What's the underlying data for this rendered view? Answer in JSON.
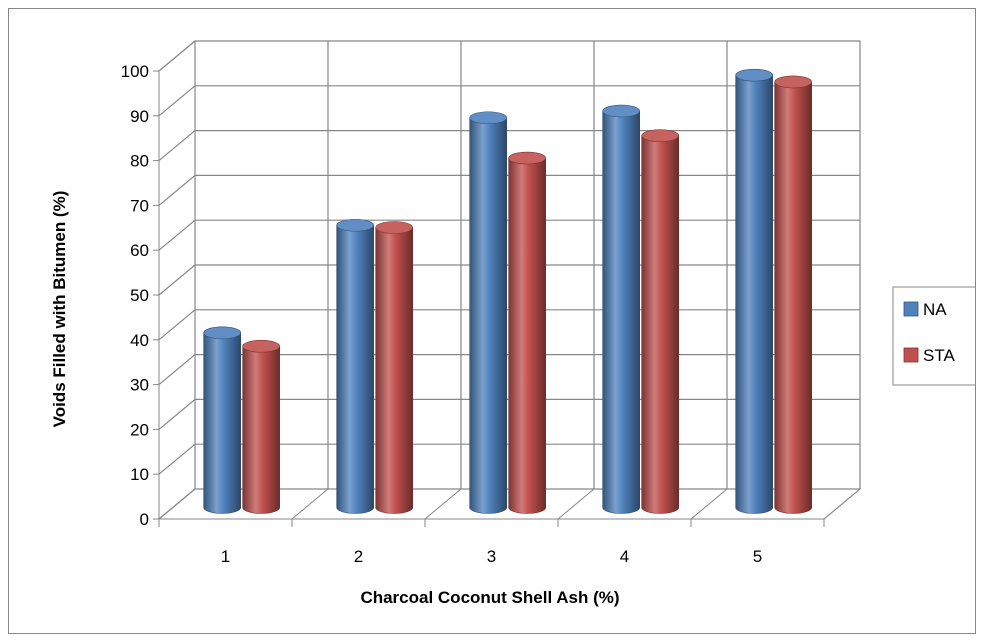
{
  "chart_data": {
    "type": "bar",
    "style": "3d-cylinder",
    "xlabel": "Charcoal Coconut Shell Ash (%)",
    "ylabel": "Voids Filled with Bitumen (%)",
    "categories": [
      "1",
      "2",
      "3",
      "4",
      "5"
    ],
    "y_ticks": [
      "0",
      "10",
      "20",
      "30",
      "40",
      "50",
      "60",
      "70",
      "80",
      "90",
      "100"
    ],
    "ylim": [
      0,
      100
    ],
    "grid": true,
    "legend_position": "right",
    "series": [
      {
        "name": "NA",
        "color": "#4f81bd",
        "values": [
          39,
          63,
          87,
          88.5,
          96.5
        ]
      },
      {
        "name": "STA",
        "color": "#c0504d",
        "values": [
          36,
          62.5,
          78,
          83,
          95
        ]
      }
    ]
  }
}
